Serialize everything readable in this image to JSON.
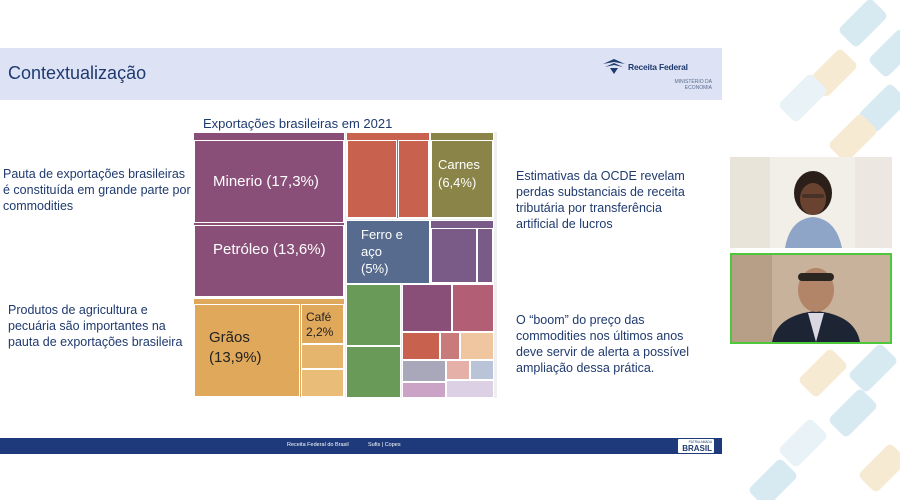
{
  "slide": {
    "title": "Contextualização",
    "logo": {
      "name": "Receita Federal",
      "ministry_line1": "MINISTÉRIO DA",
      "ministry_line2": "ECONOMIA"
    },
    "left_texts": [
      "Pauta de exportações brasileiras é constituída em grande parte por commodities",
      "Produtos de agricultura e pecuária são importantes na pauta de exportações brasileira"
    ],
    "right_texts": [
      "Estimativas da OCDE revelam perdas substanciais de receita tributária por transferência artificial de lucros",
      "O “boom” do preço das commodities nos últimos anos deve servir de alerta a possível ampliação dessa prática."
    ],
    "footer": {
      "left": "Receita Federal do Brasil",
      "right": "Sufis | Copes",
      "brand_top": "PÁTRIA AMADA",
      "brand": "BRASIL"
    }
  },
  "chart_data": {
    "type": "treemap",
    "title": "Exportações brasileiras em 2021",
    "items": [
      {
        "name": "Minerio",
        "label": "Minerio (17,3%)",
        "value": 17.3,
        "color": "#8a4f78"
      },
      {
        "name": "Petróleo",
        "label": "Petróleo (13,6%)",
        "value": 13.6,
        "color": "#8a4f78"
      },
      {
        "name": "Grãos",
        "label_line1": "Grãos",
        "label_line2": "(13,9%)",
        "value": 13.9,
        "color": "#e0a85a"
      },
      {
        "name": "Café",
        "label_line1": "Café",
        "label_line2": "2,2%",
        "value": 2.2,
        "color": "#e0a85a"
      },
      {
        "name": "Carnes",
        "label_line1": "Carnes",
        "label_line2": "(6,4%)",
        "value": 6.4,
        "color": "#8a8448"
      },
      {
        "name": "Ferro e aço",
        "label_line1": "Ferro e",
        "label_line2": "aço",
        "label_line3": "(5%)",
        "value": 5,
        "color": "#566b8e"
      }
    ]
  },
  "video": {
    "participants": [
      "participant-woman",
      "participant-man"
    ]
  }
}
